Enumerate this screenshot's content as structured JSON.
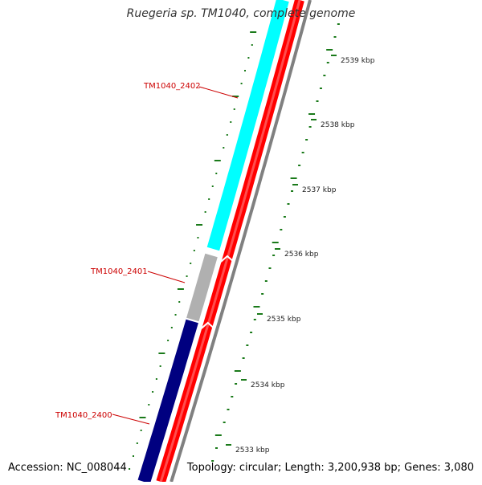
{
  "title": "Ruegeria sp. TM1040, complete genome",
  "accession_text": "Accession: NC_008044",
  "topology_text": "Topology: circular; Length: 3,200,938 bp; Genes: 3,080",
  "kbp_labels": [
    "2539 kbp",
    "2538 kbp",
    "2537 kbp",
    "2536 kbp",
    "2535 kbp",
    "2534 kbp",
    "2533 kbp"
  ],
  "genes": [
    {
      "name": "TM1040_2402",
      "color": "#00ffff",
      "strand": "top"
    },
    {
      "name": "TM1040_2401",
      "color": "#b0b0b0",
      "strand": "top"
    },
    {
      "name": "TM1040_2400",
      "color": "#000080",
      "strand": "top"
    }
  ],
  "colors": {
    "cds_track": "#ff0000",
    "backbone": "#808080",
    "ruler_ticks": "#1a7a1a",
    "gene_label": "#cc0000",
    "title": "#333333"
  }
}
